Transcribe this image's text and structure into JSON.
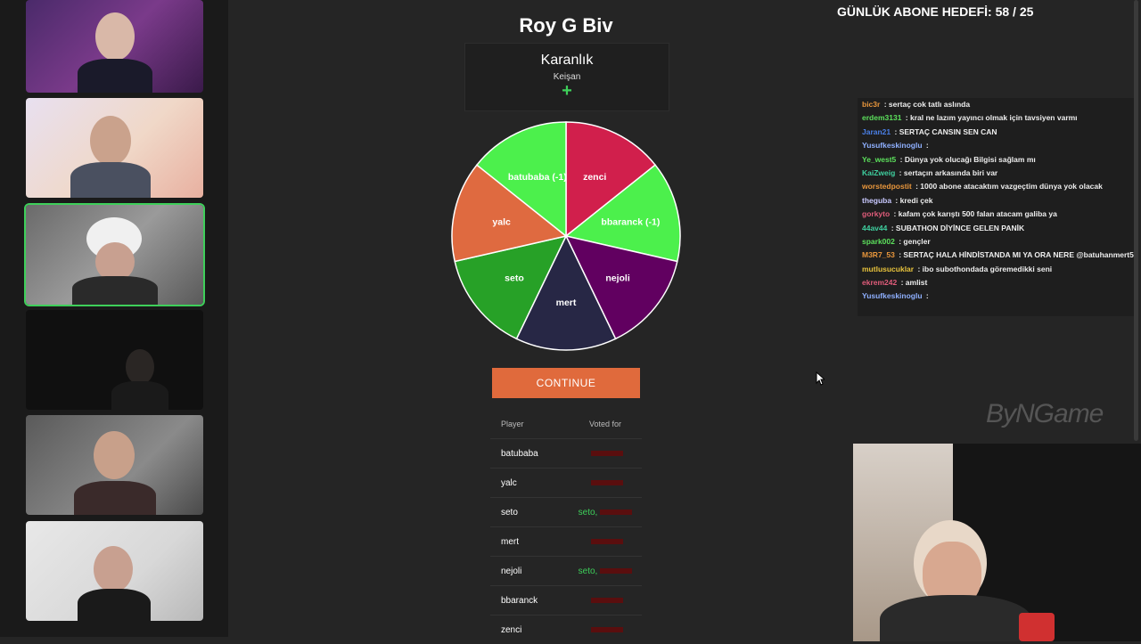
{
  "game": {
    "title": "Roy G Biv",
    "role_name": "Karanlık",
    "role_sub": "Keişan",
    "continue_label": "CONTINUE"
  },
  "wheel": {
    "segments": [
      {
        "label": "zenci",
        "color": "#d11f4c"
      },
      {
        "label": "bbaranck (-1)",
        "color": "#4cf04c"
      },
      {
        "label": "nejoli",
        "color": "#610060"
      },
      {
        "label": "mert",
        "color": "#272745"
      },
      {
        "label": "seto",
        "color": "#27a127"
      },
      {
        "label": "yalc",
        "color": "#df6a40"
      },
      {
        "label": "batubaba (-1)",
        "color": "#4cf04c"
      }
    ]
  },
  "votes": {
    "header_player": "Player",
    "header_voted": "Voted for",
    "rows": [
      {
        "player": "batubaba",
        "voted": "",
        "voted_hidden": true
      },
      {
        "player": "yalc",
        "voted": "",
        "voted_hidden": true
      },
      {
        "player": "seto",
        "voted": "seto,",
        "voted_hidden": false
      },
      {
        "player": "mert",
        "voted": "",
        "voted_hidden": true
      },
      {
        "player": "nejoli",
        "voted": "seto,",
        "voted_hidden": false
      },
      {
        "player": "bbaranck",
        "voted": "",
        "voted_hidden": true
      },
      {
        "player": "zenci",
        "voted": "",
        "voted_hidden": true
      }
    ]
  },
  "overlay": {
    "goal_text": "GÜNLÜK ABONE HEDEFİ: 58 / 25",
    "watermark": "ByNGame"
  },
  "chat": {
    "messages": [
      {
        "user": "bic3r",
        "color": "#e8963c",
        "text": ": sertaç cok tatlı aslında"
      },
      {
        "user": "erdem3131",
        "color": "#5ce05c",
        "text": ": kral ne lazım yayıncı olmak için tavsiyen varmı"
      },
      {
        "user": "Jaran21",
        "color": "#4a7fe6",
        "text": ": SERTAÇ CANSIN SEN CAN"
      },
      {
        "user": "Yusufkeskinoglu",
        "color": "#8fb0ff",
        "text": ":"
      },
      {
        "user": "Ye_west5",
        "color": "#5ce05c",
        "text": ": Dünya yok olucağı Bilgisi sağlam mı"
      },
      {
        "user": "KaiZweig",
        "color": "#3fcf9f",
        "text": ": sertaçın arkasında biri var"
      },
      {
        "user": "worstedpostit",
        "color": "#e8963c",
        "text": ": 1000 abone atacaktım vazgeçtim dünya yok olacak"
      },
      {
        "user": "theguba",
        "color": "#c9c9ff",
        "text": ": kredi çek"
      },
      {
        "user": "gorkyto",
        "color": "#e05c7a",
        "text": ": kafam çok karıştı 500 falan atacam galiba ya"
      },
      {
        "user": "44av44",
        "color": "#3fcf9f",
        "text": ": SUBATHON DİYİNCE GELEN PANİK"
      },
      {
        "user": "spark002",
        "color": "#5ce05c",
        "text": ": gençler"
      },
      {
        "user": "M3R7_53",
        "color": "#e8963c",
        "text": ": SERTAÇ HALA HİNDİSTANDA MI YA ORA NERE @batuhanmert5"
      },
      {
        "user": "mutlusucuklar",
        "color": "#e8c33c",
        "text": ": ibo subothondada göremedikki seni"
      },
      {
        "user": "ekrem242",
        "color": "#e05c7a",
        "text": ": amlist"
      },
      {
        "user": "Yusufkeskinoglu",
        "color": "#8fb0ff",
        "text": ":"
      }
    ]
  }
}
